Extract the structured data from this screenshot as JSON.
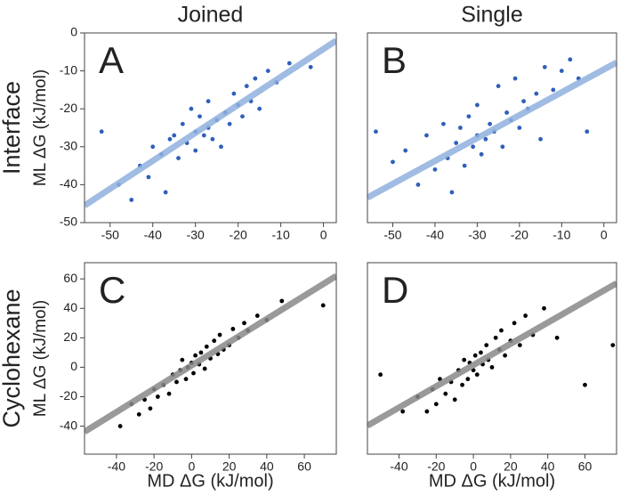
{
  "chart_data": [
    {
      "type": "scatter",
      "title": "Joined",
      "row_label": "Interface",
      "panel_label": "A",
      "ylabel": "ML ΔG (kJ/mol)",
      "xlim": [
        -56,
        3
      ],
      "ylim": [
        -50,
        0
      ],
      "xticks": [
        -50,
        -40,
        -30,
        -20,
        -10,
        0
      ],
      "yticks": [
        -50,
        -40,
        -30,
        -20,
        -10,
        0
      ],
      "color": "#2f5fb9",
      "x": [
        -52,
        -48,
        -45,
        -43,
        -41,
        -40,
        -38,
        -37,
        -36,
        -35,
        -34,
        -33,
        -32,
        -31,
        -30,
        -30,
        -29,
        -28,
        -27,
        -27,
        -26,
        -25,
        -24,
        -23,
        -22,
        -21,
        -20,
        -19,
        -18,
        -17,
        -16,
        -15,
        -13,
        -11,
        -8,
        -3
      ],
      "y": [
        -26,
        -40,
        -44,
        -35,
        -38,
        -30,
        -32,
        -42,
        -28,
        -27,
        -33,
        -24,
        -29,
        -20,
        -26,
        -31,
        -22,
        -27,
        -25,
        -18,
        -28,
        -23,
        -30,
        -21,
        -24,
        -16,
        -19,
        -22,
        -14,
        -18,
        -12,
        -20,
        -10,
        -13,
        -8,
        -9
      ],
      "fit": {
        "x": [
          -56,
          3
        ],
        "y": [
          -45.5,
          -2
        ],
        "color": "#8fb0dd"
      }
    },
    {
      "type": "scatter",
      "title": "Single",
      "panel_label": "B",
      "xlim": [
        -56,
        3
      ],
      "ylim": [
        -50,
        0
      ],
      "xticks": [
        -50,
        -40,
        -30,
        -20,
        -10,
        0
      ],
      "color": "#2f5fb9",
      "x": [
        -54,
        -50,
        -47,
        -44,
        -42,
        -40,
        -38,
        -37,
        -36,
        -35,
        -34,
        -33,
        -32,
        -31,
        -30,
        -30,
        -29,
        -28,
        -27,
        -26,
        -25,
        -24,
        -23,
        -22,
        -21,
        -20,
        -19,
        -18,
        -16,
        -15,
        -14,
        -12,
        -10,
        -8,
        -6,
        -4
      ],
      "y": [
        -26,
        -34,
        -31,
        -40,
        -27,
        -36,
        -24,
        -33,
        -42,
        -29,
        -25,
        -35,
        -22,
        -30,
        -27,
        -19,
        -32,
        -28,
        -24,
        -26,
        -14,
        -30,
        -21,
        -23,
        -12,
        -25,
        -18,
        -20,
        -16,
        -28,
        -9,
        -15,
        -10,
        -7,
        -12,
        -26
      ],
      "fit": {
        "x": [
          -56,
          3
        ],
        "y": [
          -43.4,
          -7.8
        ],
        "color": "#8fb0dd"
      }
    },
    {
      "type": "scatter",
      "row_label": "Cyclohexane",
      "panel_label": "C",
      "ylabel": "ML ΔG (kJ/mol)",
      "xlabel": "MD ΔG (kJ/mol)",
      "xlim": [
        -57,
        77
      ],
      "ylim": [
        -59,
        71
      ],
      "xticks": [
        -40,
        -20,
        0,
        20,
        40,
        60
      ],
      "yticks": [
        -40,
        -20,
        0,
        20,
        40,
        60
      ],
      "color": "#000000",
      "x": [
        -38,
        -32,
        -28,
        -25,
        -22,
        -20,
        -18,
        -15,
        -12,
        -10,
        -8,
        -6,
        -5,
        -3,
        -2,
        0,
        1,
        2,
        4,
        5,
        7,
        8,
        10,
        12,
        14,
        15,
        17,
        20,
        22,
        25,
        28,
        30,
        35,
        40,
        48,
        70
      ],
      "y": [
        -40,
        -25,
        -32,
        -22,
        -28,
        -15,
        -20,
        -12,
        -18,
        -5,
        -10,
        -2,
        5,
        -8,
        0,
        3,
        -4,
        8,
        2,
        10,
        -1,
        14,
        6,
        18,
        9,
        22,
        12,
        15,
        26,
        20,
        30,
        25,
        35,
        32,
        45,
        42
      ],
      "fit": {
        "x": [
          -57,
          77
        ],
        "y": [
          -43.8,
          62
        ],
        "color": "#888888"
      }
    },
    {
      "type": "scatter",
      "panel_label": "D",
      "xlabel": "MD ΔG (kJ/mol)",
      "xlim": [
        -57,
        77
      ],
      "ylim": [
        -59,
        71
      ],
      "xticks": [
        -40,
        -20,
        0,
        20,
        40,
        60
      ],
      "color": "#000000",
      "x": [
        -50,
        -38,
        -30,
        -25,
        -22,
        -20,
        -18,
        -15,
        -12,
        -10,
        -8,
        -6,
        -5,
        -3,
        -2,
        0,
        1,
        2,
        4,
        5,
        7,
        8,
        10,
        12,
        14,
        15,
        17,
        20,
        22,
        25,
        28,
        32,
        38,
        45,
        60,
        75
      ],
      "y": [
        -5,
        -30,
        -20,
        -30,
        -15,
        -25,
        -8,
        -18,
        -10,
        -22,
        -2,
        -12,
        5,
        -8,
        3,
        -2,
        8,
        -5,
        10,
        2,
        15,
        5,
        0,
        20,
        12,
        25,
        8,
        18,
        30,
        15,
        35,
        22,
        40,
        20,
        -12,
        15
      ],
      "fit": {
        "x": [
          -57,
          77
        ],
        "y": [
          -39.6,
          57
        ],
        "color": "#888888"
      }
    }
  ]
}
